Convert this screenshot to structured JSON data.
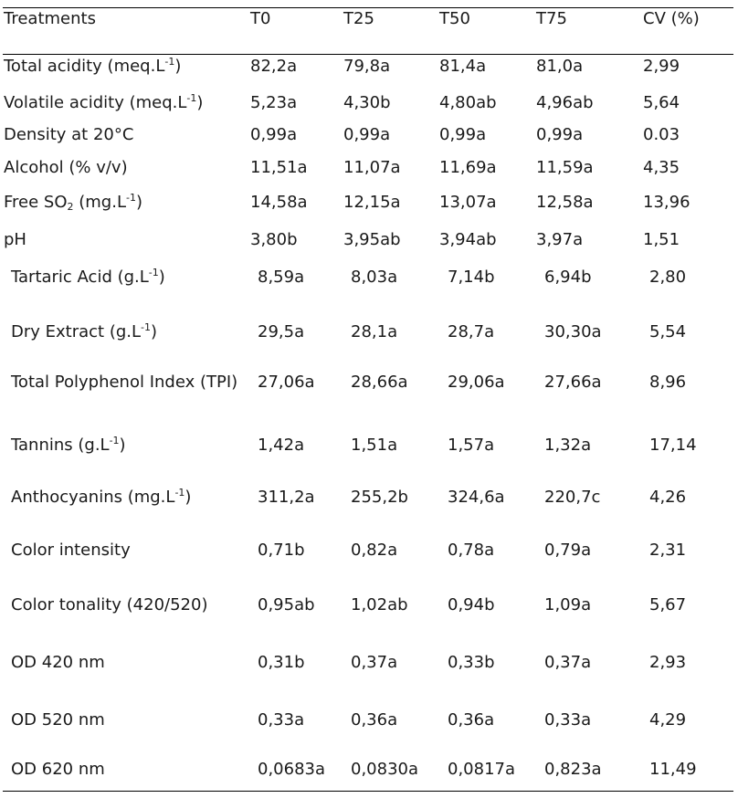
{
  "header": [
    "Treatments",
    "T0",
    "T25",
    "T50",
    "T75",
    "CV (%)"
  ],
  "rows": [
    {
      "label": {
        "pre": "Total acidity (meq.L",
        "sup": "-1",
        "post": ")"
      },
      "values": [
        "82,2a",
        "79,8a",
        "81,4a",
        "81,0a",
        "2,99"
      ]
    },
    {
      "label": {
        "pre": "Volatile acidity (meq.L",
        "sup": "-1",
        "post": ")"
      },
      "values": [
        "5,23a",
        "4,30b",
        "4,80ab",
        "4,96ab",
        "5,64"
      ]
    },
    {
      "label": {
        "pre": "Density at 20°C"
      },
      "values": [
        "0,99a",
        "0,99a",
        "0,99a",
        "0,99a",
        "0.03"
      ]
    },
    {
      "label": {
        "pre": "Alcohol (% v/v)"
      },
      "values": [
        "11,51a",
        "11,07a",
        "11,69a",
        "11,59a",
        "4,35"
      ]
    },
    {
      "label": {
        "pre": "Free SO",
        "sub": "2",
        "mid": " (mg.L",
        "sup": "-1",
        "post": ")"
      },
      "values": [
        "14,58a",
        "12,15a",
        "13,07a",
        "12,58a",
        "13,96"
      ]
    },
    {
      "label": {
        "pre": "pH"
      },
      "values": [
        "3,80b",
        "3,95ab",
        "3,94ab",
        "3,97a",
        "1,51"
      ]
    },
    {
      "label": {
        "pre": "Tartaric Acid (g.L",
        "sup": "-1",
        "post": ")"
      },
      "values": [
        "8,59a",
        "8,03a",
        "7,14b",
        "6,94b",
        "2,80"
      ]
    },
    {
      "label": {
        "pre": "Dry Extract (g.L",
        "sup": "-1",
        "post": ")"
      },
      "values": [
        "29,5a",
        "28,1a",
        "28,7a",
        "30,30a",
        "5,54"
      ]
    },
    {
      "label": {
        "pre": "Total Polyphenol Index (TPI)"
      },
      "values": [
        "27,06a",
        "28,66a",
        "29,06a",
        "27,66a",
        "8,96"
      ]
    },
    {
      "label": {
        "pre": "Tannins (g.L",
        "sup": "-1",
        "post": ")"
      },
      "values": [
        "1,42a",
        "1,51a",
        "1,57a",
        "1,32a",
        "17,14"
      ]
    },
    {
      "label": {
        "pre": "Anthocyanins (mg.L",
        "sup": "-1",
        "post": ")"
      },
      "values": [
        "311,2a",
        "255,2b",
        "324,6a",
        "220,7c",
        "4,26"
      ]
    },
    {
      "label": {
        "pre": "Color intensity"
      },
      "values": [
        "0,71b",
        "0,82a",
        "0,78a",
        "0,79a",
        "2,31"
      ]
    },
    {
      "label": {
        "pre": "Color tonality (420/520)"
      },
      "values": [
        "0,95ab",
        "1,02ab",
        "0,94b",
        "1,09a",
        "5,67"
      ]
    },
    {
      "label": {
        "pre": "OD 420 nm"
      },
      "values": [
        "0,31b",
        "0,37a",
        "0,33b",
        "0,37a",
        "2,93"
      ]
    },
    {
      "label": {
        "pre": "OD 520 nm"
      },
      "values": [
        "0,33a",
        "0,36a",
        "0,36a",
        "0,33a",
        "4,29"
      ]
    },
    {
      "label": {
        "pre": "OD 620 nm"
      },
      "values": [
        "0,0683a",
        "0,0830a",
        "0,0817a",
        "0,823a",
        "11,49"
      ]
    }
  ]
}
